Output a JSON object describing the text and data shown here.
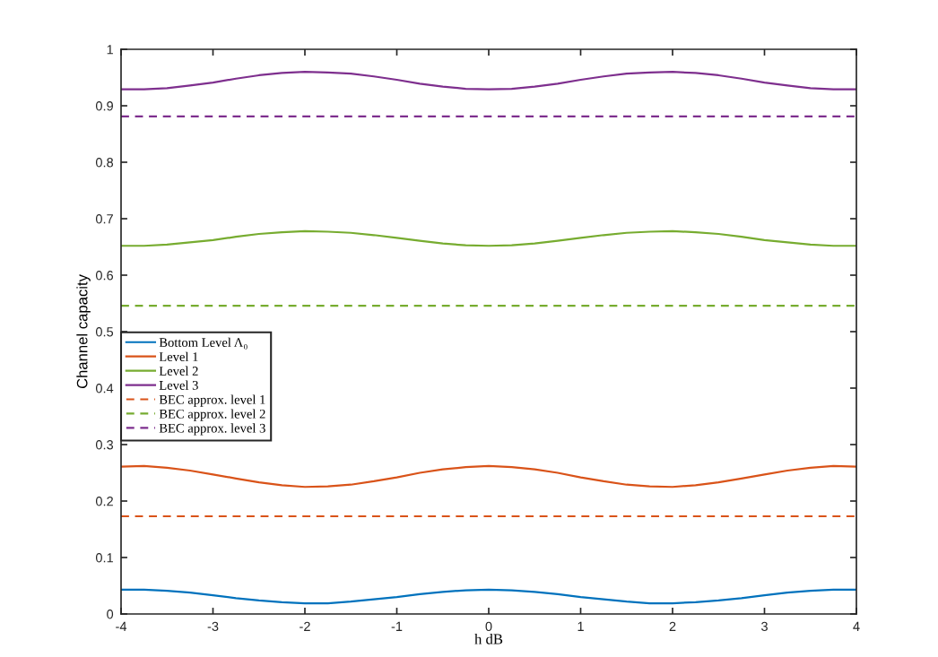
{
  "chart_data": {
    "type": "line",
    "xlabel": "h dB",
    "ylabel": "Channel capacity",
    "xlim": [
      -4,
      4
    ],
    "xticks": [
      -4,
      -3,
      -2,
      -1,
      0,
      1,
      2,
      3,
      4
    ],
    "ylim": [
      0,
      1
    ],
    "yticks": [
      0,
      0.1,
      0.2,
      0.3,
      0.4,
      0.5,
      0.6,
      0.7,
      0.8,
      0.9,
      1
    ],
    "grid": false,
    "legend": "left",
    "series": [
      {
        "name": "Bottom Level Λ₀",
        "color": "#0072bd",
        "line_style": "solid",
        "x": [
          -4,
          -3.75,
          -3.5,
          -3.25,
          -3,
          -2.75,
          -2.5,
          -2.25,
          -2,
          -1.75,
          -1.5,
          -1.25,
          -1,
          -0.75,
          -0.5,
          -0.25,
          0,
          0.25,
          0.5,
          0.75,
          1,
          1.25,
          1.5,
          1.75,
          2,
          2.25,
          2.5,
          2.75,
          3,
          3.25,
          3.5,
          3.75,
          4
        ],
        "values": [
          0.043,
          0.043,
          0.041,
          0.038,
          0.033,
          0.028,
          0.024,
          0.021,
          0.019,
          0.019,
          0.022,
          0.026,
          0.03,
          0.035,
          0.039,
          0.042,
          0.043,
          0.042,
          0.039,
          0.035,
          0.03,
          0.026,
          0.022,
          0.019,
          0.019,
          0.021,
          0.024,
          0.028,
          0.033,
          0.038,
          0.041,
          0.043,
          0.043
        ]
      },
      {
        "name": "Level 1",
        "color": "#d95319",
        "line_style": "solid",
        "x": [
          -4,
          -3.75,
          -3.5,
          -3.25,
          -3,
          -2.75,
          -2.5,
          -2.25,
          -2,
          -1.75,
          -1.5,
          -1.25,
          -1,
          -0.75,
          -0.5,
          -0.25,
          0,
          0.25,
          0.5,
          0.75,
          1,
          1.25,
          1.5,
          1.75,
          2,
          2.25,
          2.5,
          2.75,
          3,
          3.25,
          3.5,
          3.75,
          4
        ],
        "values": [
          0.261,
          0.262,
          0.259,
          0.254,
          0.247,
          0.24,
          0.233,
          0.228,
          0.225,
          0.226,
          0.229,
          0.235,
          0.242,
          0.25,
          0.256,
          0.26,
          0.262,
          0.26,
          0.256,
          0.25,
          0.242,
          0.235,
          0.229,
          0.226,
          0.225,
          0.228,
          0.233,
          0.24,
          0.247,
          0.254,
          0.259,
          0.262,
          0.261
        ]
      },
      {
        "name": "Level 2",
        "color": "#77ac30",
        "line_style": "solid",
        "x": [
          -4,
          -3.75,
          -3.5,
          -3.25,
          -3,
          -2.75,
          -2.5,
          -2.25,
          -2,
          -1.75,
          -1.5,
          -1.25,
          -1,
          -0.75,
          -0.5,
          -0.25,
          0,
          0.25,
          0.5,
          0.75,
          1,
          1.25,
          1.5,
          1.75,
          2,
          2.25,
          2.5,
          2.75,
          3,
          3.25,
          3.5,
          3.75,
          4
        ],
        "values": [
          0.652,
          0.652,
          0.654,
          0.658,
          0.662,
          0.668,
          0.673,
          0.676,
          0.678,
          0.677,
          0.675,
          0.671,
          0.666,
          0.661,
          0.656,
          0.653,
          0.652,
          0.653,
          0.656,
          0.661,
          0.666,
          0.671,
          0.675,
          0.677,
          0.678,
          0.676,
          0.673,
          0.668,
          0.662,
          0.658,
          0.654,
          0.652,
          0.652
        ]
      },
      {
        "name": "Level 3",
        "color": "#7e2f8e",
        "line_style": "solid",
        "x": [
          -4,
          -3.75,
          -3.5,
          -3.25,
          -3,
          -2.75,
          -2.5,
          -2.25,
          -2,
          -1.75,
          -1.5,
          -1.25,
          -1,
          -0.75,
          -0.5,
          -0.25,
          0,
          0.25,
          0.5,
          0.75,
          1,
          1.25,
          1.5,
          1.75,
          2,
          2.25,
          2.5,
          2.75,
          3,
          3.25,
          3.5,
          3.75,
          4
        ],
        "values": [
          0.929,
          0.929,
          0.931,
          0.936,
          0.941,
          0.948,
          0.954,
          0.958,
          0.96,
          0.959,
          0.957,
          0.952,
          0.946,
          0.939,
          0.934,
          0.93,
          0.929,
          0.93,
          0.934,
          0.939,
          0.946,
          0.952,
          0.957,
          0.959,
          0.96,
          0.958,
          0.954,
          0.948,
          0.941,
          0.936,
          0.931,
          0.929,
          0.929
        ]
      },
      {
        "name": "BEC approx. level 1",
        "color": "#d95319",
        "line_style": "dashed",
        "x": [
          -4,
          4
        ],
        "values": [
          0.173,
          0.173
        ]
      },
      {
        "name": "BEC approx. level 2",
        "color": "#77ac30",
        "line_style": "dashed",
        "x": [
          -4,
          4
        ],
        "values": [
          0.546,
          0.546
        ]
      },
      {
        "name": "BEC approx. level 3",
        "color": "#7e2f8e",
        "line_style": "dashed",
        "x": [
          -4,
          4
        ],
        "values": [
          0.881,
          0.881
        ]
      }
    ]
  }
}
